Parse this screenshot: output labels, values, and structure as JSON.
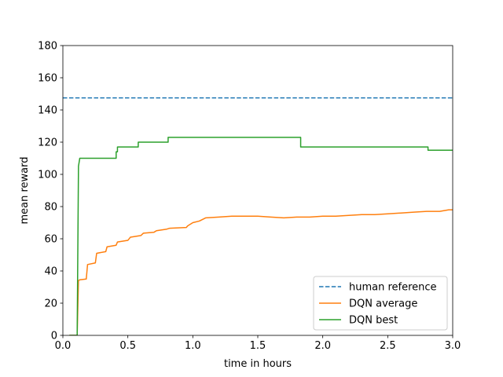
{
  "chart_data": {
    "type": "line",
    "title": "",
    "xlabel": "time in hours",
    "ylabel": "mean reward",
    "xlim": [
      0.0,
      3.0
    ],
    "ylim": [
      0,
      180
    ],
    "xticks": [
      "0.0",
      "0.5",
      "1.0",
      "1.5",
      "2.0",
      "2.5",
      "3.0"
    ],
    "yticks": [
      "0",
      "20",
      "40",
      "60",
      "80",
      "100",
      "120",
      "140",
      "160",
      "180"
    ],
    "grid": false,
    "legend_position": "bottom-right",
    "series": [
      {
        "name": "human reference",
        "color": "#1f77b4",
        "style": "dashed",
        "x": [
          0.0,
          3.0
        ],
        "y": [
          147.5,
          147.5
        ]
      },
      {
        "name": "DQN average",
        "color": "#ff7f0e",
        "style": "solid",
        "x": [
          0.05,
          0.11,
          0.12,
          0.13,
          0.18,
          0.19,
          0.25,
          0.26,
          0.33,
          0.34,
          0.41,
          0.42,
          0.5,
          0.52,
          0.6,
          0.62,
          0.7,
          0.72,
          0.8,
          0.82,
          0.95,
          0.96,
          1.0,
          1.05,
          1.1,
          1.2,
          1.3,
          1.4,
          1.5,
          1.6,
          1.7,
          1.8,
          1.9,
          2.0,
          2.1,
          2.2,
          2.3,
          2.4,
          2.5,
          2.6,
          2.7,
          2.8,
          2.9,
          2.97,
          3.0
        ],
        "y": [
          0,
          0,
          34,
          34.5,
          35,
          44,
          45,
          51,
          52,
          55,
          56,
          58,
          59,
          61,
          62,
          63.5,
          64,
          65,
          66,
          66.5,
          67,
          68,
          70,
          71,
          73,
          73.5,
          74,
          74,
          74,
          73.5,
          73,
          73.5,
          73.5,
          74,
          74,
          74.5,
          75,
          75,
          75.5,
          76,
          76.5,
          77,
          77,
          78,
          78
        ]
      },
      {
        "name": "DQN best",
        "color": "#2ca02c",
        "style": "solid",
        "x": [
          0.05,
          0.11,
          0.12,
          0.13,
          0.41,
          0.41,
          0.42,
          0.42,
          0.58,
          0.58,
          0.81,
          0.81,
          1.83,
          1.83,
          2.81,
          2.81,
          3.0
        ],
        "y": [
          0,
          0,
          105,
          110,
          110,
          114,
          114,
          117,
          117,
          120,
          120,
          123,
          123,
          117,
          117,
          115,
          115
        ]
      }
    ]
  }
}
